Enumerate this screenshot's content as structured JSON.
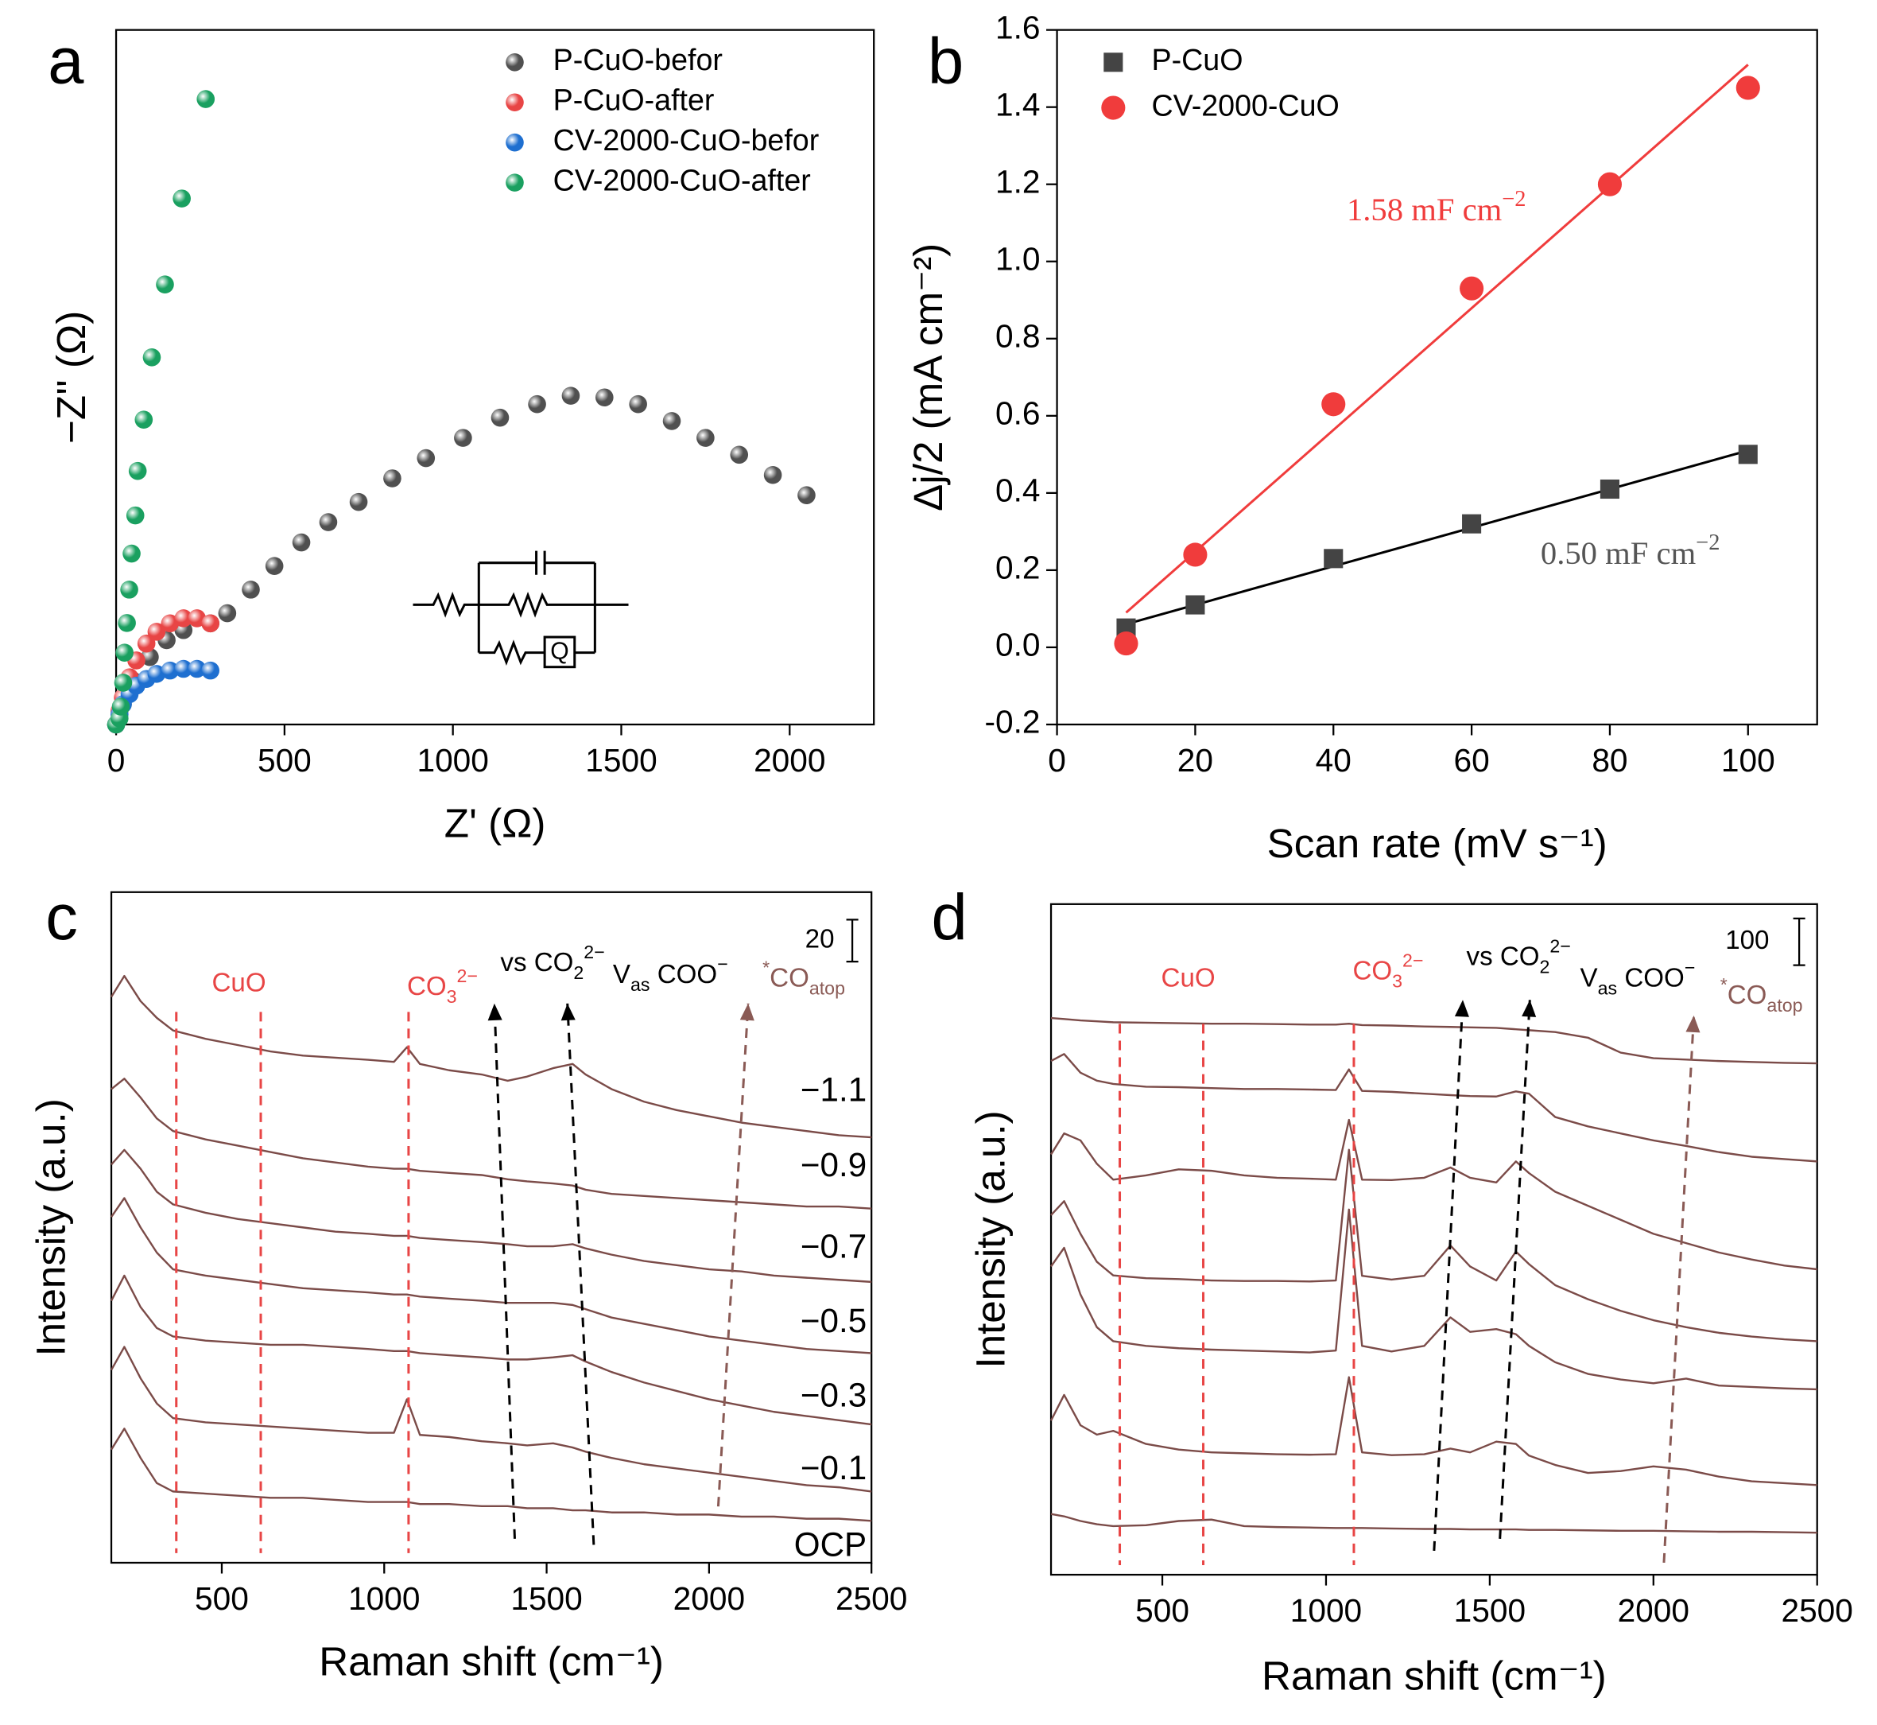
{
  "chart_data": [
    {
      "type": "scatter",
      "panel_label": "a",
      "xlabel": "Z' (Ω)",
      "ylabel": "−Z'' (Ω)",
      "xlim": [
        0,
        2250
      ],
      "ylim": [
        0,
        2060
      ],
      "xticks": [
        0,
        500,
        1000,
        1500,
        2000
      ],
      "legend": "upper right",
      "inset_label": "Q",
      "series": [
        {
          "name": "P-CuO-befor",
          "color": "#505050",
          "marker": "sphere",
          "x": [
            0,
            20,
            50,
            100,
            150,
            200,
            280,
            330,
            400,
            470,
            550,
            630,
            720,
            820,
            920,
            1030,
            1140,
            1250,
            1350,
            1450,
            1550,
            1650,
            1750,
            1850,
            1950,
            2050
          ],
          "values": [
            0,
            60,
            130,
            200,
            250,
            280,
            300,
            330,
            400,
            470,
            540,
            600,
            660,
            730,
            790,
            850,
            910,
            950,
            975,
            970,
            950,
            900,
            850,
            800,
            740,
            680
          ]
        },
        {
          "name": "P-CuO-after",
          "color": "#e84545",
          "marker": "sphere",
          "x": [
            0,
            10,
            20,
            40,
            60,
            90,
            120,
            160,
            200,
            240,
            280
          ],
          "values": [
            0,
            40,
            80,
            140,
            190,
            240,
            275,
            300,
            315,
            315,
            300
          ]
        },
        {
          "name": "CV-2000-CuO-befor",
          "color": "#1e6fd0",
          "marker": "sphere",
          "x": [
            0,
            10,
            20,
            40,
            60,
            90,
            120,
            160,
            200,
            240,
            280
          ],
          "values": [
            0,
            30,
            60,
            90,
            115,
            135,
            150,
            160,
            165,
            165,
            160
          ]
        },
        {
          "name": "CV-2000-CuO-after",
          "color": "#1aa060",
          "marker": "sphere",
          "x": [
            0,
            10,
            14,
            21,
            25,
            32,
            39,
            46,
            57,
            64,
            82,
            106,
            145,
            195,
            266
          ],
          "values": [
            0,
            18,
            53,
            124,
            213,
            301,
            400,
            507,
            620,
            752,
            904,
            1089,
            1305,
            1560,
            1855
          ]
        }
      ]
    },
    {
      "type": "scatter",
      "panel_label": "b",
      "xlabel": "Scan rate (mV s⁻¹)",
      "ylabel": "Δj/2 (mA cm⁻²)",
      "xlim": [
        0,
        110
      ],
      "ylim": [
        -0.2,
        1.6
      ],
      "xticks": [
        0,
        20,
        40,
        60,
        80,
        100
      ],
      "yticks": [
        -0.2,
        {
          "value": 0,
          "label": "0.0"
        },
        0.2,
        0.4,
        0.6,
        0.8,
        {
          "value": 1,
          "label": "1.0"
        },
        1.2,
        1.4,
        1.6
      ],
      "legend": "upper left",
      "series": [
        {
          "name": "P-CuO",
          "color": "#444444",
          "marker": "square",
          "x": [
            10,
            20,
            40,
            60,
            80,
            100
          ],
          "values": [
            0.05,
            0.11,
            0.23,
            0.32,
            0.41,
            0.5
          ]
        },
        {
          "name": "CV-2000-CuO",
          "color": "#f03c3c",
          "marker": "circle",
          "x": [
            10,
            20,
            40,
            60,
            80,
            100
          ],
          "values": [
            0.01,
            0.24,
            0.63,
            0.93,
            1.2,
            1.45
          ]
        }
      ],
      "fits": [
        {
          "color": "#000000",
          "x": [
            10,
            100
          ],
          "values": [
            0.06,
            0.51
          ]
        },
        {
          "color": "#f03c3c",
          "x": [
            10,
            100
          ],
          "values": [
            0.09,
            1.51
          ]
        }
      ],
      "annotations": [
        {
          "color": "#f03c3c",
          "parts": [
            {
              "text": "1.58 mF cm"
            },
            {
              "sup": "−2"
            }
          ]
        },
        {
          "color": "#555555",
          "parts": [
            {
              "text": "0.50 mF cm"
            },
            {
              "sup": "−2"
            }
          ]
        }
      ]
    },
    {
      "type": "line",
      "panel_label": "c",
      "xlabel": "Raman shift (cm⁻¹)",
      "ylabel": "Intensity (a.u.)",
      "xlim": [
        160,
        2500
      ],
      "ylim": [
        0,
        320
      ],
      "xticks": [
        500,
        1000,
        1500,
        2000,
        2500
      ],
      "scale_bar": 20,
      "reference_lines": [
        360,
        620,
        1075
      ],
      "reference_color": "#e84545",
      "x": [
        160,
        200,
        250,
        300,
        350,
        450,
        550,
        650,
        750,
        850,
        950,
        1030,
        1070,
        1110,
        1200,
        1300,
        1380,
        1440,
        1520,
        1580,
        1620,
        1700,
        1800,
        1900,
        2000,
        2100,
        2200,
        2300,
        2400,
        2500
      ],
      "series": [
        {
          "name": "OCP",
          "color": "#7b4b48",
          "values": [
            54,
            64,
            50,
            38,
            34,
            33,
            32,
            31,
            31,
            30,
            29,
            29,
            29,
            28,
            28,
            27,
            27,
            26,
            26,
            25,
            25,
            24,
            24,
            23,
            23,
            22,
            22,
            21,
            21,
            20
          ]
        },
        {
          "name": "−0.1",
          "color": "#7b4b48",
          "values": [
            92,
            103,
            88,
            76,
            69,
            67,
            66,
            65,
            64,
            63,
            62,
            62,
            78,
            61,
            60,
            58,
            57,
            56,
            57,
            55,
            53,
            50,
            47,
            45,
            43,
            41,
            39,
            37,
            36,
            34
          ]
        },
        {
          "name": "−0.3",
          "color": "#7b4b48",
          "values": [
            125,
            137,
            122,
            112,
            108,
            106,
            105,
            104,
            104,
            103,
            102,
            101,
            101,
            100,
            99,
            98,
            97,
            97,
            98,
            99,
            96,
            91,
            86,
            82,
            78,
            75,
            72,
            70,
            68,
            66
          ]
        },
        {
          "name": "−0.5",
          "color": "#7b4b48",
          "values": [
            165,
            174,
            160,
            148,
            140,
            137,
            135,
            133,
            131,
            130,
            129,
            128,
            128,
            127,
            126,
            125,
            124,
            124,
            124,
            123,
            121,
            117,
            114,
            111,
            108,
            106,
            104,
            102,
            101,
            100
          ]
        },
        {
          "name": "−0.7",
          "color": "#7b4b48",
          "values": [
            190,
            197,
            188,
            177,
            171,
            167,
            164,
            162,
            160,
            158,
            157,
            156,
            156,
            155,
            154,
            153,
            152,
            151,
            151,
            152,
            150,
            147,
            144,
            142,
            140,
            139,
            137,
            136,
            135,
            134
          ]
        },
        {
          "name": "−0.9",
          "color": "#7b4b48",
          "values": [
            226,
            231,
            222,
            212,
            206,
            202,
            199,
            196,
            193,
            191,
            189,
            188,
            188,
            187,
            186,
            185,
            183,
            182,
            181,
            180,
            178,
            176,
            175,
            174,
            173,
            172,
            171,
            170,
            170,
            169
          ]
        },
        {
          "name": "−1.1",
          "color": "#7b4b48",
          "values": [
            270,
            280,
            268,
            260,
            254,
            250,
            247,
            244,
            242,
            241,
            240,
            239,
            246,
            238,
            235,
            233,
            230,
            232,
            236,
            238,
            233,
            226,
            220,
            216,
            213,
            210,
            208,
            206,
            204,
            203
          ]
        }
      ],
      "annotations": [
        {
          "color": "#e84545",
          "parts": [
            {
              "text": "CuO"
            }
          ]
        },
        {
          "color": "#e84545",
          "parts": [
            {
              "text": "CO"
            },
            {
              "sub": "3"
            },
            {
              "sup": "2−"
            }
          ]
        },
        {
          "color": "#000000",
          "parts": [
            {
              "text": "vs CO"
            },
            {
              "sub": "2"
            },
            {
              "sup": "2−"
            }
          ]
        },
        {
          "color": "#000000",
          "parts": [
            {
              "text": "V"
            },
            {
              "sub": "as"
            },
            {
              "text": " COO"
            },
            {
              "sup": "−"
            }
          ]
        },
        {
          "color": "#8a5a55",
          "parts": [
            {
              "sup": "*"
            },
            {
              "text": "CO"
            },
            {
              "sub": "atop"
            }
          ]
        }
      ]
    },
    {
      "type": "line",
      "panel_label": "d",
      "xlabel": "Raman shift (cm⁻¹)",
      "ylabel": "Intensity (a.u.)",
      "xlim": [
        160,
        2500
      ],
      "ylim": [
        0,
        1436
      ],
      "xticks": [
        500,
        1000,
        1500,
        2000,
        2500
      ],
      "scale_bar": 100,
      "reference_lines": [
        370,
        625,
        1085
      ],
      "reference_color": "#e84545",
      "x": [
        160,
        200,
        250,
        300,
        350,
        450,
        550,
        650,
        750,
        850,
        950,
        1030,
        1070,
        1110,
        1200,
        1300,
        1380,
        1440,
        1520,
        1580,
        1620,
        1700,
        1800,
        1900,
        2000,
        2100,
        2200,
        2300,
        2400,
        2500
      ],
      "series": [
        {
          "color": "#7b4b48",
          "values": [
            1192,
            1190,
            1187,
            1185,
            1183,
            1182,
            1181,
            1180,
            1180,
            1179,
            1178,
            1178,
            1180,
            1177,
            1176,
            1174,
            1173,
            1172,
            1171,
            1168,
            1166,
            1162,
            1150,
            1118,
            1106,
            1103,
            1100,
            1098,
            1096,
            1095
          ]
        },
        {
          "color": "#7b4b48",
          "values": [
            1100,
            1115,
            1075,
            1058,
            1051,
            1045,
            1044,
            1042,
            1040,
            1040,
            1039,
            1038,
            1082,
            1036,
            1034,
            1030,
            1027,
            1025,
            1024,
            1035,
            1030,
            980,
            960,
            945,
            930,
            918,
            905,
            895,
            890,
            885
          ]
        },
        {
          "color": "#7b4b48",
          "values": [
            900,
            945,
            930,
            880,
            846,
            855,
            868,
            865,
            855,
            850,
            848,
            846,
            974,
            846,
            845,
            850,
            872,
            850,
            840,
            885,
            860,
            820,
            790,
            760,
            730,
            710,
            690,
            675,
            662,
            654
          ]
        },
        {
          "color": "#7b4b48",
          "values": [
            770,
            800,
            730,
            670,
            641,
            635,
            633,
            630,
            629,
            629,
            628,
            630,
            910,
            640,
            632,
            640,
            705,
            660,
            630,
            692,
            665,
            620,
            590,
            565,
            545,
            530,
            518,
            510,
            504,
            500
          ]
        },
        {
          "color": "#7b4b48",
          "values": [
            660,
            700,
            600,
            530,
            500,
            490,
            485,
            482,
            480,
            478,
            476,
            480,
            782,
            490,
            478,
            490,
            551,
            520,
            526,
            515,
            490,
            455,
            430,
            418,
            410,
            420,
            405,
            402,
            399,
            397
          ]
        },
        {
          "color": "#7b4b48",
          "values": [
            330,
            385,
            320,
            300,
            308,
            280,
            268,
            262,
            260,
            258,
            257,
            258,
            423,
            262,
            256,
            258,
            270,
            262,
            285,
            280,
            255,
            235,
            218,
            222,
            232,
            225,
            210,
            200,
            196,
            192
          ]
        },
        {
          "color": "#7b4b48",
          "values": [
            130,
            125,
            115,
            108,
            104,
            106,
            115,
            118,
            104,
            102,
            101,
            100,
            100,
            100,
            99,
            98,
            98,
            97,
            97,
            97,
            96,
            96,
            95,
            94,
            94,
            93,
            92,
            92,
            91,
            90
          ]
        }
      ],
      "annotations": [
        {
          "color": "#e84545",
          "parts": [
            {
              "text": "CuO"
            }
          ]
        },
        {
          "color": "#e84545",
          "parts": [
            {
              "text": "CO"
            },
            {
              "sub": "3"
            },
            {
              "sup": "2−"
            }
          ]
        },
        {
          "color": "#000000",
          "parts": [
            {
              "text": "vs CO"
            },
            {
              "sub": "2"
            },
            {
              "sup": "2−"
            }
          ]
        },
        {
          "color": "#000000",
          "parts": [
            {
              "text": "V"
            },
            {
              "sub": "as"
            },
            {
              "text": " COO"
            },
            {
              "sup": "−"
            }
          ]
        },
        {
          "color": "#8a5a55",
          "parts": [
            {
              "sup": "*"
            },
            {
              "text": "CO"
            },
            {
              "sub": "atop"
            }
          ]
        }
      ]
    }
  ]
}
